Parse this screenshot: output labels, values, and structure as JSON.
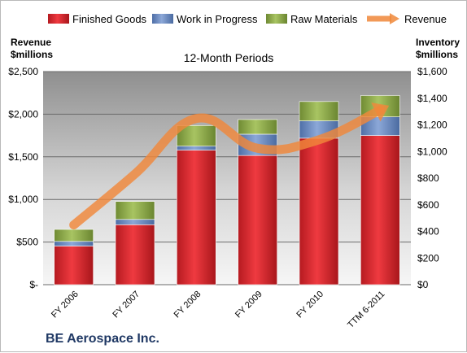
{
  "chart_data": {
    "type": "bar",
    "subtitle": "12-Month Periods",
    "company": "BE Aerospace Inc.",
    "left_axis_title": [
      "Revenue",
      "$millions"
    ],
    "right_axis_title": [
      "Inventory",
      "$millions"
    ],
    "categories": [
      "FY 2006",
      "FY 2007",
      "FY 2008",
      "FY 2009",
      "FY 2010",
      "TTM 6-2011"
    ],
    "left_ticks": [
      "$-",
      "$500",
      "$1,000",
      "$1,500",
      "$2,000",
      "$2,500"
    ],
    "right_ticks": [
      "$0",
      "$200",
      "$400",
      "$600",
      "$800",
      "$1,000",
      "$1,200",
      "$1,400",
      "$1,600"
    ],
    "left_ylim": [
      0,
      2500
    ],
    "right_ylim": [
      0,
      1600
    ],
    "stacked": true,
    "series": [
      {
        "name": "Finished Goods",
        "axis": "right",
        "color": "#e8262d",
        "values": [
          290,
          450,
          1010,
          970,
          1100,
          1120
        ]
      },
      {
        "name": "Work in Progress",
        "axis": "right",
        "color": "#6f8fc4",
        "values": [
          35,
          40,
          30,
          160,
          130,
          140
        ]
      },
      {
        "name": "Raw Materials",
        "axis": "right",
        "color": "#8fad4a",
        "values": [
          90,
          135,
          155,
          110,
          145,
          160
        ]
      },
      {
        "name": "Revenue",
        "type": "line",
        "axis": "left",
        "color": "#f0883a",
        "values": [
          700,
          1300,
          1950,
          1600,
          1700,
          2050
        ]
      }
    ],
    "grid": true,
    "legend_position": "top"
  }
}
